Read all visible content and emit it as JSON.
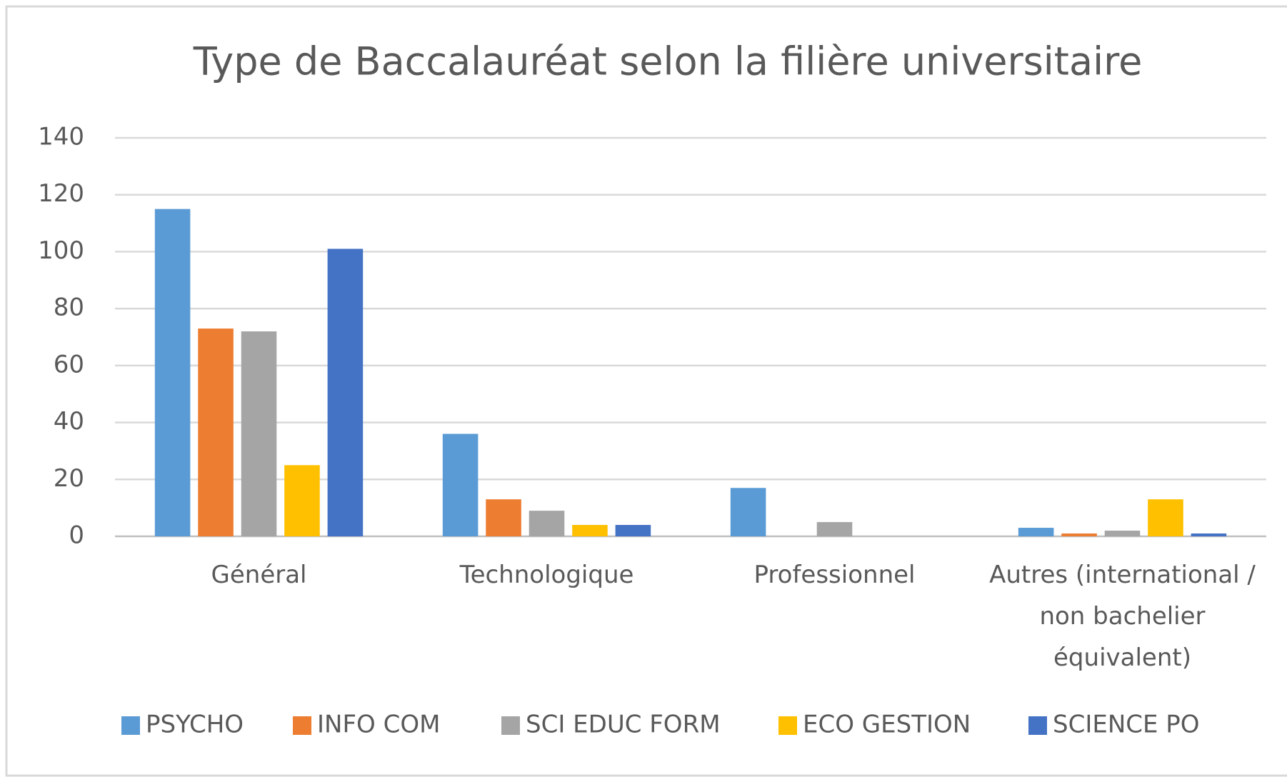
{
  "chart_data": {
    "type": "bar",
    "title": "Type de Baccalauréat selon la filière universitaire",
    "categories": [
      "Général",
      "Technologique",
      "Professionnel",
      "Autres (international / non bachelier équivalent)"
    ],
    "series": [
      {
        "name": "PSYCHO",
        "color": "#5b9bd5",
        "values": [
          115,
          36,
          17,
          3
        ]
      },
      {
        "name": "INFO COM",
        "color": "#ed7d31",
        "values": [
          73,
          13,
          0,
          1
        ]
      },
      {
        "name": "SCI EDUC FORM",
        "color": "#a5a5a5",
        "values": [
          72,
          9,
          5,
          2
        ]
      },
      {
        "name": "ECO GESTION",
        "color": "#ffc000",
        "values": [
          25,
          4,
          0,
          13
        ]
      },
      {
        "name": "SCIENCE PO",
        "color": "#4472c4",
        "values": [
          101,
          4,
          0,
          1
        ]
      }
    ],
    "ylim": [
      0,
      140
    ],
    "yticks": [
      0,
      20,
      40,
      60,
      80,
      100,
      120,
      140
    ],
    "grid": true,
    "legend": "bottom"
  }
}
